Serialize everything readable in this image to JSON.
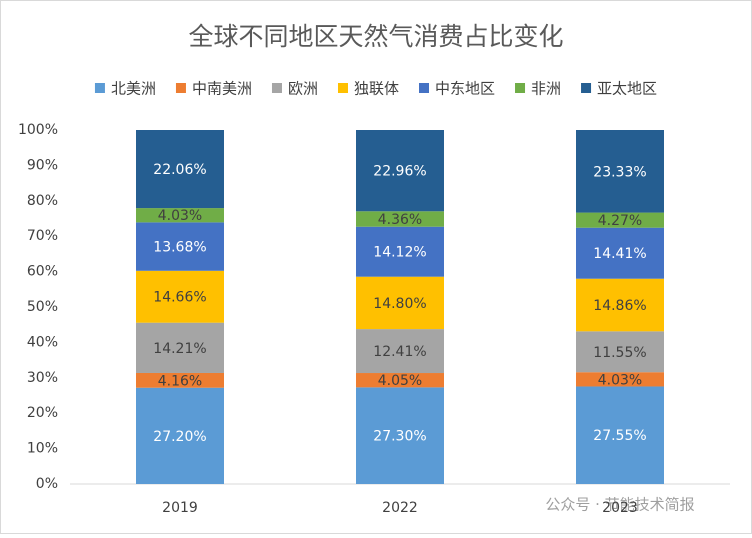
{
  "chart_data": {
    "type": "stacked_bar_100",
    "title": "全球不同地区天然气消费占比变化",
    "categories": [
      "2019",
      "2022",
      "2023"
    ],
    "series": [
      {
        "name": "北美洲",
        "color": "#5b9bd5",
        "label_color": "#ffffff",
        "values": [
          27.2,
          27.3,
          27.55
        ],
        "value_labels": [
          "27.20%",
          "27.30%",
          "27.55%"
        ]
      },
      {
        "name": "中南美洲",
        "color": "#ed7d31",
        "label_color": "#404040",
        "values": [
          4.16,
          4.05,
          4.03
        ],
        "value_labels": [
          "4.16%",
          "4.05%",
          "4.03%"
        ]
      },
      {
        "name": "欧洲",
        "color": "#a5a5a5",
        "label_color": "#404040",
        "values": [
          14.21,
          12.41,
          11.55
        ],
        "value_labels": [
          "14.21%",
          "12.41%",
          "11.55%"
        ]
      },
      {
        "name": "独联体",
        "color": "#ffc000",
        "label_color": "#404040",
        "values": [
          14.66,
          14.8,
          14.86
        ],
        "value_labels": [
          "14.66%",
          "14.80%",
          "14.86%"
        ]
      },
      {
        "name": "中东地区",
        "color": "#4472c4",
        "label_color": "#ffffff",
        "values": [
          13.68,
          14.12,
          14.41
        ],
        "value_labels": [
          "13.68%",
          "14.12%",
          "14.41%"
        ]
      },
      {
        "name": "非洲",
        "color": "#70ad47",
        "label_color": "#404040",
        "values": [
          4.03,
          4.36,
          4.27
        ],
        "value_labels": [
          "4.03%",
          "4.36%",
          "4.27%"
        ]
      },
      {
        "name": "亚太地区",
        "color": "#255e91",
        "label_color": "#ffffff",
        "values": [
          22.06,
          22.96,
          23.33
        ],
        "value_labels": [
          "22.06%",
          "22.96%",
          "23.33%"
        ]
      }
    ],
    "ylim": [
      0,
      100
    ],
    "yticks": [
      {
        "value": 0,
        "label": "0%"
      },
      {
        "value": 10,
        "label": "10%"
      },
      {
        "value": 20,
        "label": "20%"
      },
      {
        "value": 30,
        "label": "30%"
      },
      {
        "value": 40,
        "label": "40%"
      },
      {
        "value": 50,
        "label": "50%"
      },
      {
        "value": 60,
        "label": "60%"
      },
      {
        "value": 70,
        "label": "70%"
      },
      {
        "value": 80,
        "label": "80%"
      },
      {
        "value": 90,
        "label": "90%"
      },
      {
        "value": 100,
        "label": "100%"
      }
    ],
    "grid": false,
    "legend": "top",
    "watermark": "公众号 · 节能技术简报"
  }
}
